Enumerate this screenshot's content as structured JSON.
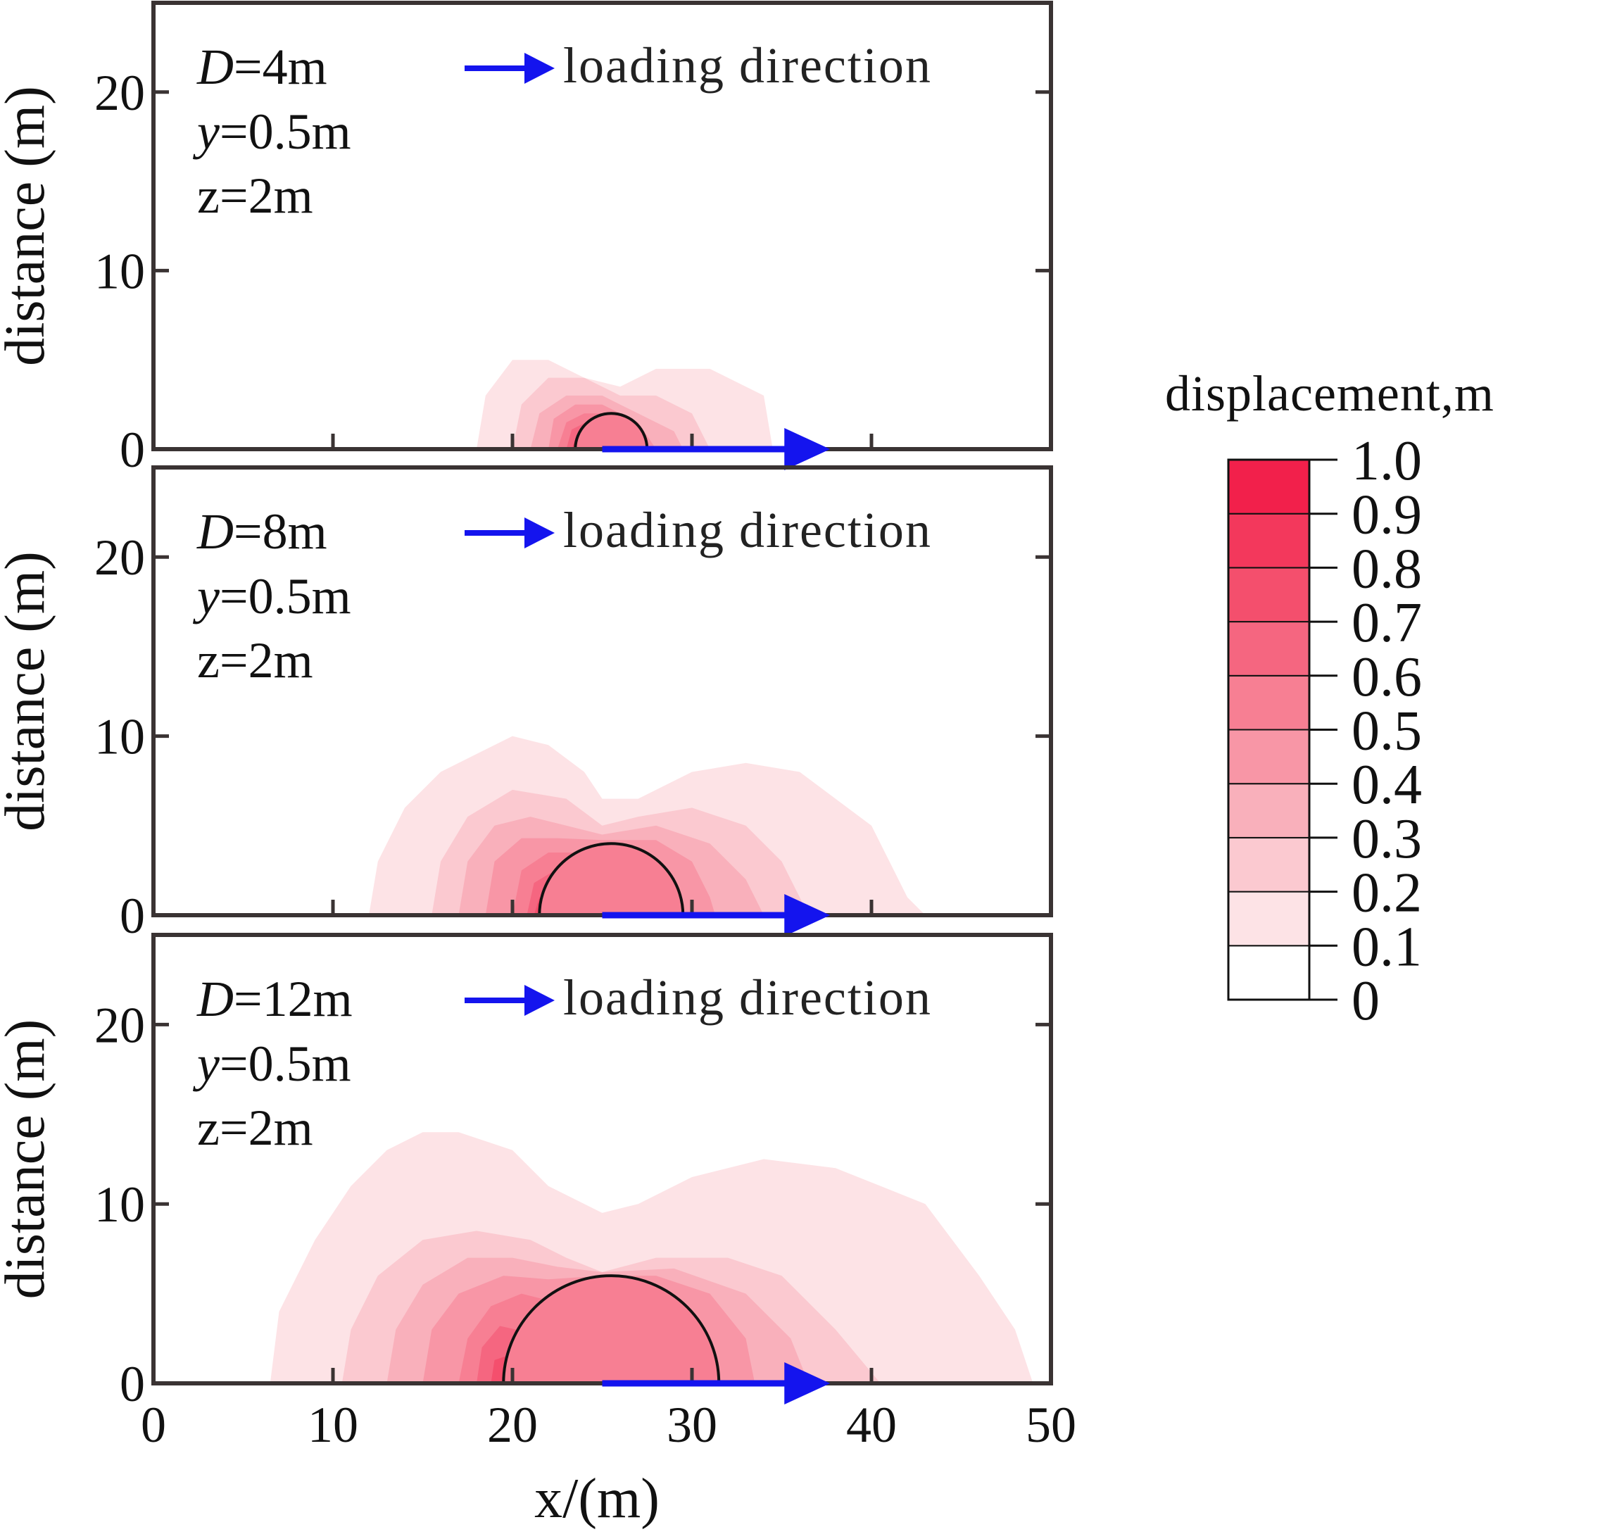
{
  "chart_data": {
    "type": "heatmap",
    "title": "",
    "xlabel": "x/(m)",
    "ylabel": "distance (m)",
    "xlim": [
      0,
      50
    ],
    "ylim": [
      0,
      25
    ],
    "x_ticks": [
      0,
      10,
      20,
      30,
      40,
      50
    ],
    "y_ticks": [
      0,
      10,
      20
    ],
    "x_tick_labels": [
      "0",
      "10",
      "20",
      "30",
      "40",
      "50"
    ],
    "y_tick_labels": [
      "0",
      "10",
      "20"
    ],
    "legend_text": "loading direction",
    "arrow_color": "#1414ee",
    "load_arrow": {
      "x_start": 25,
      "x_end": 37.5
    },
    "colorbar": {
      "title": "displacement,m",
      "levels": [
        0,
        0.1,
        0.2,
        0.3,
        0.4,
        0.5,
        0.6,
        0.7,
        0.8,
        0.9,
        1.0
      ],
      "labels": [
        "0",
        "0.1",
        "0.2",
        "0.3",
        "0.4",
        "0.5",
        "0.6",
        "0.7",
        "0.8",
        "0.9",
        "1.0"
      ],
      "colors": [
        "#ffffff",
        "#fde3e6",
        "#fbc9d0",
        "#f9b0bb",
        "#f896a6",
        "#f77f93",
        "#f56680",
        "#f44f6d",
        "#f3385c",
        "#f2204b"
      ]
    },
    "panels": [
      {
        "D_label": "D=4m",
        "y_label": "y=0.5m",
        "z_label": "z=2m",
        "D": 4,
        "tunnel_center_x": 25.5,
        "tunnel_radius": 2,
        "contours": [
          {
            "level": 0.1,
            "points": [
              [
                18,
                0
              ],
              [
                18.5,
                3
              ],
              [
                20,
                5
              ],
              [
                22,
                5
              ],
              [
                24,
                4
              ],
              [
                26,
                3.5
              ],
              [
                28,
                4.5
              ],
              [
                31,
                4.5
              ],
              [
                34,
                3
              ],
              [
                34.5,
                0
              ]
            ]
          },
          {
            "level": 0.2,
            "points": [
              [
                20,
                0
              ],
              [
                20.5,
                2.5
              ],
              [
                22,
                4
              ],
              [
                24,
                4
              ],
              [
                26,
                3
              ],
              [
                28,
                3
              ],
              [
                30,
                2
              ],
              [
                31,
                0
              ]
            ]
          },
          {
            "level": 0.3,
            "points": [
              [
                21,
                0
              ],
              [
                21.5,
                2
              ],
              [
                23,
                3
              ],
              [
                25,
                3
              ],
              [
                27,
                2
              ],
              [
                29,
                1
              ],
              [
                29.5,
                0
              ]
            ]
          },
          {
            "level": 0.4,
            "points": [
              [
                22,
                0
              ],
              [
                22.3,
                1.7
              ],
              [
                23.5,
                2.5
              ],
              [
                25,
                2.5
              ],
              [
                27,
                1.5
              ],
              [
                28,
                0
              ]
            ]
          },
          {
            "level": 0.5,
            "points": [
              [
                22.5,
                0
              ],
              [
                23,
                1.5
              ],
              [
                24,
                2
              ],
              [
                25.5,
                2
              ],
              [
                26.5,
                1
              ],
              [
                27,
                0
              ]
            ]
          },
          {
            "level": 0.6,
            "points": [
              [
                23,
                0
              ],
              [
                23.3,
                1.1
              ],
              [
                24.3,
                1.6
              ],
              [
                25.5,
                1.6
              ],
              [
                26.5,
                0
              ]
            ]
          },
          {
            "level": 0.7,
            "points": [
              [
                23.3,
                0
              ],
              [
                23.6,
                0.8
              ],
              [
                24.5,
                1.1
              ],
              [
                25.4,
                0.8
              ],
              [
                25.6,
                0
              ]
            ]
          }
        ]
      },
      {
        "D_label": "D=8m",
        "y_label": "y=0.5m",
        "z_label": "z=2m",
        "D": 8,
        "tunnel_center_x": 25.5,
        "tunnel_radius": 4,
        "contours": [
          {
            "level": 0.1,
            "points": [
              [
                12,
                0
              ],
              [
                12.5,
                3
              ],
              [
                14,
                6
              ],
              [
                16,
                8
              ],
              [
                18,
                9
              ],
              [
                20,
                10
              ],
              [
                22,
                9.5
              ],
              [
                24,
                8
              ],
              [
                25,
                6.5
              ],
              [
                27,
                6.5
              ],
              [
                30,
                8
              ],
              [
                33,
                8.5
              ],
              [
                36,
                8
              ],
              [
                40,
                5
              ],
              [
                42,
                1
              ],
              [
                43,
                0
              ]
            ]
          },
          {
            "level": 0.2,
            "points": [
              [
                15.5,
                0
              ],
              [
                16,
                3
              ],
              [
                17.5,
                5.5
              ],
              [
                20,
                7
              ],
              [
                23,
                6.5
              ],
              [
                25,
                5
              ],
              [
                27,
                5.5
              ],
              [
                30,
                6
              ],
              [
                33,
                5
              ],
              [
                35,
                3
              ],
              [
                36.5,
                0
              ]
            ]
          },
          {
            "level": 0.3,
            "points": [
              [
                17,
                0
              ],
              [
                17.5,
                3
              ],
              [
                19,
                5
              ],
              [
                21,
                5.5
              ],
              [
                23,
                5
              ],
              [
                25,
                4.5
              ],
              [
                28,
                5
              ],
              [
                31,
                4
              ],
              [
                33,
                2
              ],
              [
                34,
                0
              ]
            ]
          },
          {
            "level": 0.4,
            "points": [
              [
                18.5,
                0
              ],
              [
                19,
                3
              ],
              [
                20.5,
                4.3
              ],
              [
                22.5,
                4.3
              ],
              [
                25,
                4.2
              ],
              [
                28,
                4.2
              ],
              [
                30,
                3
              ],
              [
                31,
                1
              ],
              [
                31.3,
                0
              ]
            ]
          },
          {
            "level": 0.5,
            "points": [
              [
                20,
                0
              ],
              [
                20.5,
                2.5
              ],
              [
                22,
                3.5
              ],
              [
                24,
                3.5
              ],
              [
                22.3,
                2
              ],
              [
                22,
                0
              ]
            ]
          },
          {
            "level": 0.6,
            "points": [
              [
                20.8,
                0
              ],
              [
                21.2,
                1.8
              ],
              [
                22.2,
                2.4
              ],
              [
                21.9,
                0
              ]
            ]
          },
          {
            "level": 0.7,
            "points": [
              [
                21.2,
                0
              ],
              [
                21.5,
                1
              ],
              [
                21.9,
                0.8
              ],
              [
                21.7,
                0
              ]
            ]
          }
        ]
      },
      {
        "D_label": "D=12m",
        "y_label": "y=0.5m",
        "z_label": "z=2m",
        "D": 12,
        "tunnel_center_x": 25.5,
        "tunnel_radius": 6,
        "contours": [
          {
            "level": 0.1,
            "points": [
              [
                6.5,
                0
              ],
              [
                7,
                4
              ],
              [
                9,
                8
              ],
              [
                11,
                11
              ],
              [
                13,
                13
              ],
              [
                15,
                14
              ],
              [
                17,
                14
              ],
              [
                20,
                13
              ],
              [
                22,
                11
              ],
              [
                25,
                9.5
              ],
              [
                27,
                10
              ],
              [
                30,
                11.5
              ],
              [
                34,
                12.5
              ],
              [
                38,
                12
              ],
              [
                43,
                10
              ],
              [
                46,
                6
              ],
              [
                48,
                3
              ],
              [
                49,
                0
              ]
            ]
          },
          {
            "level": 0.2,
            "points": [
              [
                10.5,
                0
              ],
              [
                11,
                3
              ],
              [
                12.5,
                6
              ],
              [
                15,
                8
              ],
              [
                18,
                8.5
              ],
              [
                21,
                8
              ],
              [
                23,
                7
              ],
              [
                25,
                6.2
              ],
              [
                28,
                7
              ],
              [
                32,
                7
              ],
              [
                35,
                6
              ],
              [
                38,
                3
              ],
              [
                40.5,
                0
              ]
            ]
          },
          {
            "level": 0.3,
            "points": [
              [
                13,
                0
              ],
              [
                13.5,
                3
              ],
              [
                15,
                5.5
              ],
              [
                17.5,
                7
              ],
              [
                20,
                7
              ],
              [
                22.5,
                6.5
              ],
              [
                25,
                6.2
              ],
              [
                29,
                6.4
              ],
              [
                33,
                5
              ],
              [
                35.5,
                2.5
              ],
              [
                36.5,
                0
              ]
            ]
          },
          {
            "level": 0.4,
            "points": [
              [
                15,
                0
              ],
              [
                15.5,
                3
              ],
              [
                17,
                5
              ],
              [
                19.5,
                6
              ],
              [
                22,
                5.8
              ],
              [
                25,
                6
              ],
              [
                28,
                6
              ],
              [
                31,
                5
              ],
              [
                33,
                2.5
              ],
              [
                33.5,
                0
              ]
            ]
          },
          {
            "level": 0.5,
            "points": [
              [
                17,
                0
              ],
              [
                17.5,
                2.5
              ],
              [
                18.8,
                4.3
              ],
              [
                20.5,
                5
              ],
              [
                22.5,
                4.5
              ],
              [
                20.5,
                2
              ],
              [
                19.7,
                0
              ]
            ]
          },
          {
            "level": 0.6,
            "points": [
              [
                18,
                0
              ],
              [
                18.3,
                2
              ],
              [
                19.3,
                3.2
              ],
              [
                20.2,
                3
              ],
              [
                19.6,
                0
              ]
            ]
          },
          {
            "level": 0.7,
            "points": [
              [
                18.8,
                0
              ],
              [
                19,
                1.3
              ],
              [
                19.6,
                1.5
              ],
              [
                19.5,
                0
              ]
            ]
          }
        ]
      }
    ]
  }
}
